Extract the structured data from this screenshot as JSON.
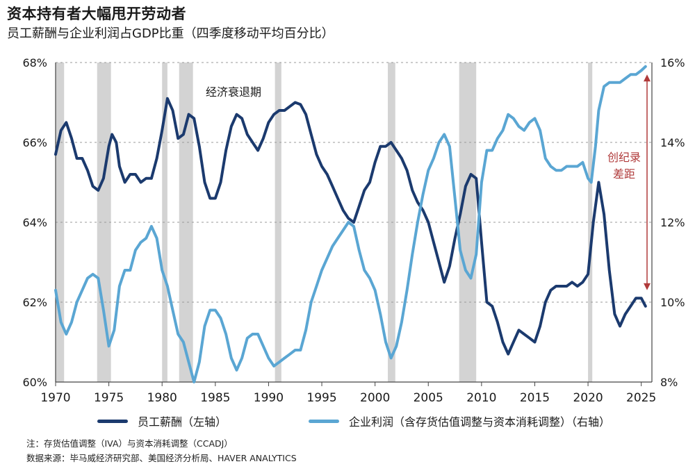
{
  "title": "资本持有者大幅甩开劳动者",
  "subtitle": "员工薪酬与企业利润占GDP比重（四季度移动平均百分比）",
  "colors": {
    "compensation": "#1b3a6e",
    "profits": "#5aa6d3",
    "recession": "#d3d3d3",
    "annotation": "#b03a3a"
  },
  "chart_data": {
    "type": "line",
    "x_range": [
      1970,
      2026
    ],
    "x_ticks": [
      "1970",
      "1975",
      "1980",
      "1985",
      "1990",
      "1995",
      "2000",
      "2005",
      "2010",
      "2015",
      "2020",
      "2025"
    ],
    "y_left": {
      "range": [
        60,
        68
      ],
      "ticks": [
        "60%",
        "62%",
        "64%",
        "66%",
        "68%"
      ]
    },
    "y_right": {
      "range": [
        8,
        16
      ],
      "ticks": [
        "8%",
        "10%",
        "12%",
        "14%",
        "16%"
      ]
    },
    "grid": "horizontal",
    "recessions": [
      [
        1970.0,
        1970.8
      ],
      [
        1973.9,
        1975.2
      ],
      [
        1980.0,
        1980.5
      ],
      [
        1981.6,
        1982.9
      ],
      [
        1990.6,
        1991.2
      ],
      [
        2001.2,
        2001.9
      ],
      [
        2007.9,
        2009.5
      ],
      [
        2020.0,
        2020.4
      ]
    ],
    "recession_label": "经济衰退期",
    "annotation": "创纪录\n差距",
    "series": [
      {
        "name": "员工薪酬（左轴）",
        "axis": "left",
        "points": [
          [
            1970,
            65.7
          ],
          [
            1970.5,
            66.3
          ],
          [
            1971,
            66.5
          ],
          [
            1971.5,
            66.1
          ],
          [
            1972,
            65.6
          ],
          [
            1972.5,
            65.6
          ],
          [
            1973,
            65.3
          ],
          [
            1973.5,
            64.9
          ],
          [
            1974,
            64.8
          ],
          [
            1974.5,
            65.1
          ],
          [
            1975,
            65.9
          ],
          [
            1975.3,
            66.2
          ],
          [
            1975.7,
            66.0
          ],
          [
            1976,
            65.4
          ],
          [
            1976.5,
            65.0
          ],
          [
            1977,
            65.2
          ],
          [
            1977.5,
            65.2
          ],
          [
            1978,
            65.0
          ],
          [
            1978.5,
            65.1
          ],
          [
            1979,
            65.1
          ],
          [
            1979.5,
            65.6
          ],
          [
            1980,
            66.3
          ],
          [
            1980.5,
            67.1
          ],
          [
            1981,
            66.8
          ],
          [
            1981.5,
            66.1
          ],
          [
            1982,
            66.2
          ],
          [
            1982.5,
            66.7
          ],
          [
            1983,
            66.6
          ],
          [
            1983.5,
            65.9
          ],
          [
            1984,
            65.0
          ],
          [
            1984.5,
            64.6
          ],
          [
            1985,
            64.6
          ],
          [
            1985.5,
            65.0
          ],
          [
            1986,
            65.8
          ],
          [
            1986.5,
            66.4
          ],
          [
            1987,
            66.7
          ],
          [
            1987.5,
            66.6
          ],
          [
            1988,
            66.2
          ],
          [
            1988.5,
            66.0
          ],
          [
            1989,
            65.8
          ],
          [
            1989.5,
            66.1
          ],
          [
            1990,
            66.5
          ],
          [
            1990.5,
            66.7
          ],
          [
            1991,
            66.8
          ],
          [
            1991.5,
            66.8
          ],
          [
            1992,
            66.9
          ],
          [
            1992.5,
            67.0
          ],
          [
            1993,
            66.95
          ],
          [
            1993.5,
            66.7
          ],
          [
            1994,
            66.2
          ],
          [
            1994.5,
            65.7
          ],
          [
            1995,
            65.4
          ],
          [
            1995.5,
            65.2
          ],
          [
            1996,
            64.9
          ],
          [
            1996.5,
            64.6
          ],
          [
            1997,
            64.3
          ],
          [
            1997.5,
            64.1
          ],
          [
            1998,
            64.0
          ],
          [
            1998.5,
            64.4
          ],
          [
            1999,
            64.8
          ],
          [
            1999.5,
            65.0
          ],
          [
            2000,
            65.5
          ],
          [
            2000.5,
            65.9
          ],
          [
            2001,
            65.9
          ],
          [
            2001.5,
            66.0
          ],
          [
            2002,
            65.8
          ],
          [
            2002.5,
            65.6
          ],
          [
            2003,
            65.3
          ],
          [
            2003.5,
            64.8
          ],
          [
            2004,
            64.5
          ],
          [
            2004.5,
            64.3
          ],
          [
            2005,
            64.0
          ],
          [
            2005.5,
            63.5
          ],
          [
            2006,
            63.0
          ],
          [
            2006.5,
            62.5
          ],
          [
            2007,
            62.9
          ],
          [
            2007.5,
            63.6
          ],
          [
            2008,
            64.2
          ],
          [
            2008.5,
            64.9
          ],
          [
            2009,
            65.2
          ],
          [
            2009.5,
            65.1
          ],
          [
            2010,
            63.5
          ],
          [
            2010.5,
            62.0
          ],
          [
            2011,
            61.9
          ],
          [
            2011.5,
            61.5
          ],
          [
            2012,
            61.0
          ],
          [
            2012.5,
            60.7
          ],
          [
            2013,
            61.0
          ],
          [
            2013.5,
            61.3
          ],
          [
            2014,
            61.2
          ],
          [
            2014.5,
            61.1
          ],
          [
            2015,
            61.0
          ],
          [
            2015.5,
            61.4
          ],
          [
            2016,
            62.0
          ],
          [
            2016.5,
            62.3
          ],
          [
            2017,
            62.4
          ],
          [
            2017.5,
            62.4
          ],
          [
            2018,
            62.4
          ],
          [
            2018.5,
            62.5
          ],
          [
            2019,
            62.4
          ],
          [
            2019.5,
            62.5
          ],
          [
            2020,
            62.7
          ],
          [
            2020.5,
            64.0
          ],
          [
            2021,
            65.0
          ],
          [
            2021.5,
            64.2
          ],
          [
            2022,
            62.8
          ],
          [
            2022.5,
            61.7
          ],
          [
            2023,
            61.4
          ],
          [
            2023.5,
            61.7
          ],
          [
            2024,
            61.9
          ],
          [
            2024.5,
            62.1
          ],
          [
            2025,
            62.1
          ],
          [
            2025.4,
            61.9
          ]
        ]
      },
      {
        "name": "企业利润（含存货估值调整与资本消耗调整）（右轴）",
        "axis": "right",
        "points": [
          [
            1970,
            10.3
          ],
          [
            1970.5,
            9.5
          ],
          [
            1971,
            9.2
          ],
          [
            1971.5,
            9.5
          ],
          [
            1972,
            10.0
          ],
          [
            1972.5,
            10.3
          ],
          [
            1973,
            10.6
          ],
          [
            1973.5,
            10.7
          ],
          [
            1974,
            10.6
          ],
          [
            1974.5,
            9.8
          ],
          [
            1975,
            8.9
          ],
          [
            1975.5,
            9.3
          ],
          [
            1976,
            10.4
          ],
          [
            1976.5,
            10.8
          ],
          [
            1977,
            10.8
          ],
          [
            1977.5,
            11.3
          ],
          [
            1978,
            11.5
          ],
          [
            1978.5,
            11.6
          ],
          [
            1979,
            11.9
          ],
          [
            1979.5,
            11.6
          ],
          [
            1980,
            10.8
          ],
          [
            1980.5,
            10.4
          ],
          [
            1981,
            9.8
          ],
          [
            1981.5,
            9.2
          ],
          [
            1982,
            9.0
          ],
          [
            1982.5,
            8.5
          ],
          [
            1983,
            8.0
          ],
          [
            1983.5,
            8.5
          ],
          [
            1984,
            9.4
          ],
          [
            1984.5,
            9.8
          ],
          [
            1985,
            9.8
          ],
          [
            1985.5,
            9.6
          ],
          [
            1986,
            9.2
          ],
          [
            1986.5,
            8.6
          ],
          [
            1987,
            8.3
          ],
          [
            1987.5,
            8.6
          ],
          [
            1988,
            9.1
          ],
          [
            1988.5,
            9.2
          ],
          [
            1989,
            9.2
          ],
          [
            1989.5,
            8.9
          ],
          [
            1990,
            8.6
          ],
          [
            1990.5,
            8.4
          ],
          [
            1991,
            8.5
          ],
          [
            1991.5,
            8.6
          ],
          [
            1992,
            8.7
          ],
          [
            1992.5,
            8.8
          ],
          [
            1993,
            8.8
          ],
          [
            1993.5,
            9.3
          ],
          [
            1994,
            10.0
          ],
          [
            1994.5,
            10.4
          ],
          [
            1995,
            10.8
          ],
          [
            1995.5,
            11.1
          ],
          [
            1996,
            11.4
          ],
          [
            1996.5,
            11.6
          ],
          [
            1997,
            11.8
          ],
          [
            1997.5,
            12.0
          ],
          [
            1998,
            11.9
          ],
          [
            1998.5,
            11.3
          ],
          [
            1999,
            10.8
          ],
          [
            1999.5,
            10.6
          ],
          [
            2000,
            10.3
          ],
          [
            2000.5,
            9.7
          ],
          [
            2001,
            9.0
          ],
          [
            2001.5,
            8.6
          ],
          [
            2002,
            8.9
          ],
          [
            2002.5,
            9.5
          ],
          [
            2003,
            10.3
          ],
          [
            2003.5,
            11.2
          ],
          [
            2004,
            12.0
          ],
          [
            2004.5,
            12.7
          ],
          [
            2005,
            13.3
          ],
          [
            2005.5,
            13.6
          ],
          [
            2006,
            14.0
          ],
          [
            2006.5,
            14.2
          ],
          [
            2007,
            13.9
          ],
          [
            2007.5,
            12.6
          ],
          [
            2008,
            11.3
          ],
          [
            2008.5,
            10.8
          ],
          [
            2009,
            10.6
          ],
          [
            2009.5,
            11.2
          ],
          [
            2010,
            13.0
          ],
          [
            2010.5,
            13.8
          ],
          [
            2011,
            13.8
          ],
          [
            2011.5,
            14.1
          ],
          [
            2012,
            14.3
          ],
          [
            2012.5,
            14.7
          ],
          [
            2013,
            14.6
          ],
          [
            2013.5,
            14.4
          ],
          [
            2014,
            14.3
          ],
          [
            2014.5,
            14.5
          ],
          [
            2015,
            14.6
          ],
          [
            2015.5,
            14.3
          ],
          [
            2016,
            13.6
          ],
          [
            2016.5,
            13.4
          ],
          [
            2017,
            13.3
          ],
          [
            2017.5,
            13.3
          ],
          [
            2018,
            13.4
          ],
          [
            2018.5,
            13.4
          ],
          [
            2019,
            13.4
          ],
          [
            2019.5,
            13.5
          ],
          [
            2020,
            13.1
          ],
          [
            2020.3,
            13.0
          ],
          [
            2020.7,
            13.9
          ],
          [
            2021,
            14.8
          ],
          [
            2021.5,
            15.4
          ],
          [
            2022,
            15.5
          ],
          [
            2022.5,
            15.5
          ],
          [
            2023,
            15.5
          ],
          [
            2023.5,
            15.6
          ],
          [
            2024,
            15.7
          ],
          [
            2024.5,
            15.7
          ],
          [
            2025,
            15.8
          ],
          [
            2025.4,
            15.9
          ]
        ]
      }
    ]
  },
  "legend": {
    "compensation": "员工薪酬（左轴）",
    "profits": "企业利润（含存货估值调整与资本消耗调整）（右轴）"
  },
  "notes": {
    "note": "注：存货估值调整（IVA）与资本消耗调整（CCADJ）",
    "source": "数据来源：毕马威经济研究部、美国经济分析局、HAVER ANALYTICS"
  }
}
